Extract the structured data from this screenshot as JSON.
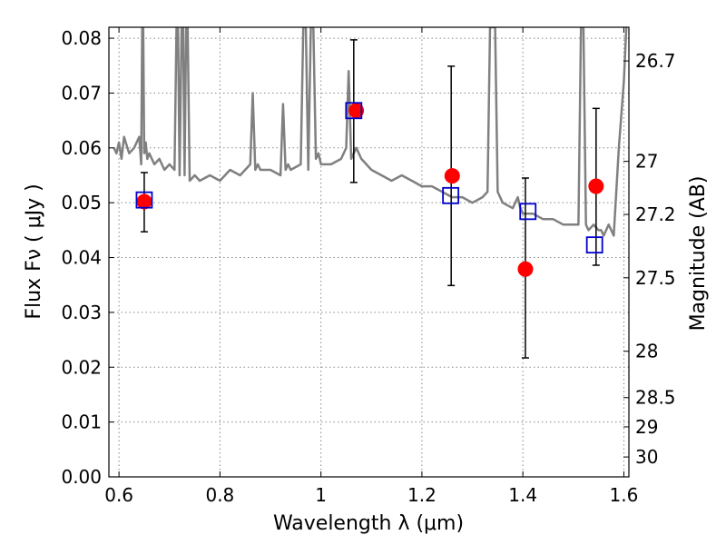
{
  "chart_data": {
    "type": "scatter",
    "title": "",
    "xlabel": "Wavelength  λ (μm)",
    "ylabel": "Flux  Fν  ( μJy )",
    "y2label": "Magnitude (AB)",
    "xlim": [
      0.58,
      1.61
    ],
    "ylim": [
      0.0,
      0.082
    ],
    "grid": true,
    "x_ticks": [
      0.6,
      0.8,
      1.0,
      1.2,
      1.4,
      1.6
    ],
    "x_tick_labels": [
      "0.6",
      "0.8",
      "1",
      "1.2",
      "1.4",
      "1.6"
    ],
    "y_ticks": [
      0.0,
      0.01,
      0.02,
      0.03,
      0.04,
      0.05,
      0.06,
      0.07,
      0.08
    ],
    "y_tick_labels": [
      "0.00",
      "0.01",
      "0.02",
      "0.03",
      "0.04",
      "0.05",
      "0.06",
      "0.07",
      "0.08"
    ],
    "y2_ticks": [
      26.7,
      27,
      27.2,
      27.5,
      28,
      28.5,
      29,
      30
    ],
    "y2_tick_labels": [
      "26.7",
      "27",
      "27.2",
      "27.5",
      "28",
      "28.5",
      "29",
      "30"
    ],
    "colors": {
      "spectrum": "#808080",
      "observed": "#ff0000",
      "model": "#0000cc",
      "errorbar": "#000000",
      "grid": "#888888"
    },
    "series": [
      {
        "name": "model spectrum",
        "kind": "line",
        "x": [
          0.59,
          0.595,
          0.6,
          0.605,
          0.61,
          0.62,
          0.63,
          0.64,
          0.644,
          0.646,
          0.648,
          0.65,
          0.653,
          0.656,
          0.66,
          0.67,
          0.68,
          0.69,
          0.7,
          0.71,
          0.714,
          0.717,
          0.72,
          0.724,
          0.727,
          0.73,
          0.733,
          0.736,
          0.74,
          0.75,
          0.76,
          0.78,
          0.8,
          0.82,
          0.84,
          0.86,
          0.865,
          0.87,
          0.875,
          0.88,
          0.9,
          0.92,
          0.925,
          0.93,
          0.935,
          0.94,
          0.96,
          0.965,
          0.97,
          0.975,
          0.98,
          0.985,
          0.99,
          0.995,
          1.0,
          1.02,
          1.04,
          1.05,
          1.055,
          1.06,
          1.065,
          1.07,
          1.08,
          1.09,
          1.1,
          1.12,
          1.14,
          1.16,
          1.18,
          1.2,
          1.22,
          1.24,
          1.26,
          1.28,
          1.3,
          1.32,
          1.33,
          1.335,
          1.34,
          1.345,
          1.35,
          1.36,
          1.38,
          1.39,
          1.395,
          1.4,
          1.42,
          1.44,
          1.46,
          1.48,
          1.5,
          1.51,
          1.515,
          1.52,
          1.525,
          1.53,
          1.54,
          1.55,
          1.555,
          1.56,
          1.57,
          1.58,
          1.59,
          1.6,
          1.605
        ],
        "y": [
          0.06,
          0.059,
          0.061,
          0.058,
          0.062,
          0.059,
          0.06,
          0.062,
          0.057,
          0.082,
          0.082,
          0.059,
          0.061,
          0.058,
          0.059,
          0.057,
          0.058,
          0.056,
          0.057,
          0.056,
          0.082,
          0.082,
          0.055,
          0.082,
          0.082,
          0.055,
          0.082,
          0.082,
          0.054,
          0.055,
          0.054,
          0.055,
          0.054,
          0.056,
          0.055,
          0.057,
          0.07,
          0.056,
          0.057,
          0.056,
          0.056,
          0.055,
          0.068,
          0.056,
          0.057,
          0.056,
          0.057,
          0.082,
          0.082,
          0.056,
          0.082,
          0.082,
          0.058,
          0.059,
          0.057,
          0.057,
          0.058,
          0.06,
          0.074,
          0.058,
          0.059,
          0.06,
          0.058,
          0.057,
          0.056,
          0.055,
          0.054,
          0.055,
          0.054,
          0.053,
          0.053,
          0.052,
          0.051,
          0.051,
          0.05,
          0.051,
          0.052,
          0.082,
          0.082,
          0.082,
          0.052,
          0.05,
          0.049,
          0.051,
          0.049,
          0.048,
          0.048,
          0.047,
          0.047,
          0.046,
          0.046,
          0.046,
          0.082,
          0.082,
          0.046,
          0.045,
          0.046,
          0.045,
          0.045,
          0.044,
          0.046,
          0.044,
          0.06,
          0.072,
          0.082
        ]
      },
      {
        "name": "observed",
        "kind": "points",
        "marker": "circle",
        "x": [
          0.65,
          1.07,
          1.26,
          1.405,
          1.545
        ],
        "y": [
          0.0502,
          0.0668,
          0.0549,
          0.0379,
          0.053
        ]
      },
      {
        "name": "model photometry",
        "kind": "points",
        "marker": "open-square",
        "x": [
          0.65,
          1.065,
          1.257,
          1.41,
          1.542
        ],
        "y": [
          0.0505,
          0.0668,
          0.0513,
          0.0484,
          0.0423
        ]
      },
      {
        "name": "error bars",
        "kind": "errorbar",
        "x": [
          0.65,
          1.065,
          1.258,
          1.405,
          1.545
        ],
        "y_low": [
          0.0447,
          0.0537,
          0.0349,
          0.0217,
          0.0386
        ],
        "y_high": [
          0.0555,
          0.0797,
          0.0749,
          0.0545,
          0.0672
        ]
      }
    ]
  }
}
